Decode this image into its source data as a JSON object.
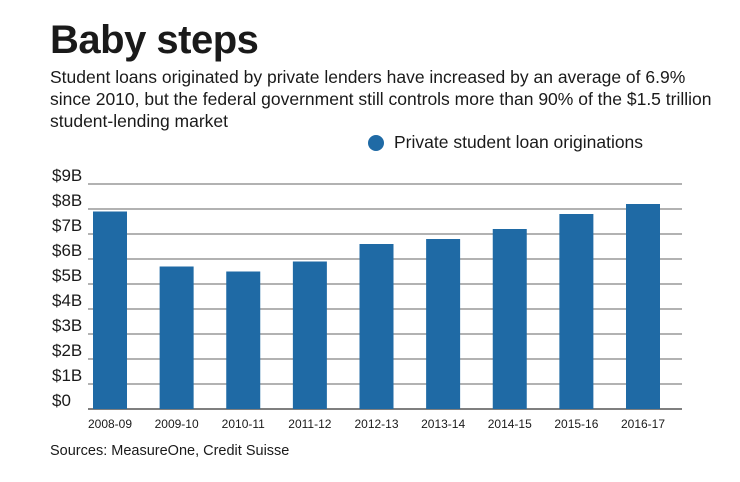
{
  "chart_data": {
    "type": "bar",
    "title": "Baby steps",
    "subtitle": "Student loans originated by private lenders have increased by an average of 6.9% since 2010, but the federal government still controls more than 90% of the $1.5 trillion student-lending market",
    "legend": [
      "Private student loan originations"
    ],
    "categories": [
      "2008-09",
      "2009-10",
      "2010-11",
      "2011-12",
      "2012-13",
      "2013-14",
      "2014-15",
      "2015-16",
      "2016-17"
    ],
    "series": [
      {
        "name": "Private student loan originations",
        "values": [
          7.9,
          5.7,
          5.5,
          5.9,
          6.6,
          6.8,
          7.2,
          7.8,
          8.2
        ]
      }
    ],
    "ylim": [
      0,
      9
    ],
    "yticks": [
      "$0",
      "$1B",
      "$2B",
      "$3B",
      "$4B",
      "$5B",
      "$6B",
      "$7B",
      "$8B",
      "$9B"
    ],
    "xlabel": "",
    "ylabel": "",
    "grid": true,
    "source": "Sources: MeasureOne, Credit Suisse"
  },
  "colors": {
    "bar": "#1f6aa5",
    "grid": "#333333"
  }
}
